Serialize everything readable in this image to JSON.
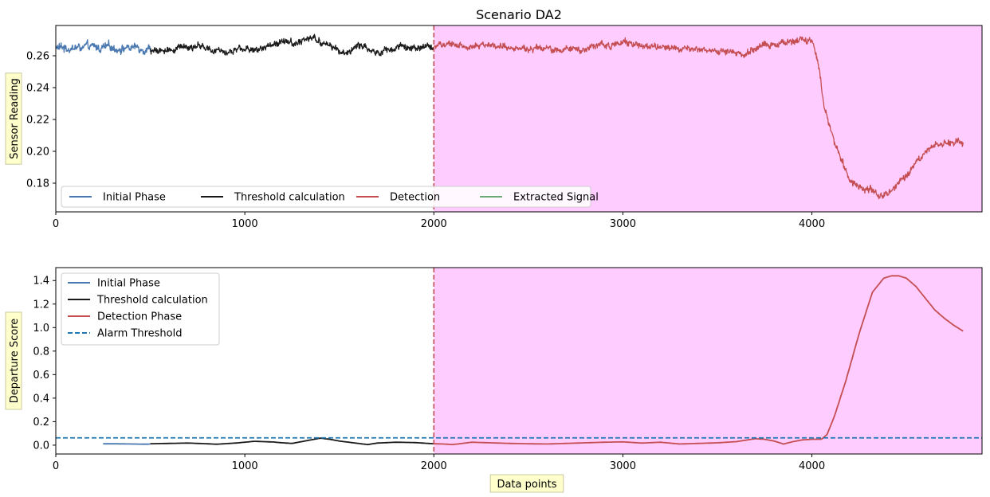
{
  "chart_data": [
    {
      "type": "line",
      "title": "Scenario DA2",
      "xlabel": "",
      "ylabel": "Sensor Reading",
      "xlim": [
        0,
        4900
      ],
      "ylim": [
        0.162,
        0.279
      ],
      "xticks": [
        0,
        1000,
        2000,
        3000,
        4000
      ],
      "yticks": [
        0.18,
        0.2,
        0.22,
        0.24,
        0.26
      ],
      "detection_start": 2000,
      "shaded_region": {
        "from": 2000,
        "to": 4900,
        "color": "#ffccff"
      },
      "legend_position": "lower-left",
      "legend_columns": 4,
      "series": [
        {
          "name": "Initial Phase",
          "color": "#4a78b0",
          "x": [
            0,
            500
          ],
          "y": [
            0.265,
            0.265
          ],
          "noise": 0.0025
        },
        {
          "name": "Threshold calculation",
          "color": "#1a1a1a",
          "x": [
            500,
            560,
            640,
            760,
            820,
            900,
            1000,
            1100,
            1200,
            1280,
            1350,
            1450,
            1520,
            1600,
            1700,
            1800,
            1900,
            2000
          ],
          "y": [
            0.263,
            0.262,
            0.265,
            0.267,
            0.263,
            0.263,
            0.264,
            0.265,
            0.27,
            0.268,
            0.271,
            0.266,
            0.262,
            0.266,
            0.263,
            0.264,
            0.265,
            0.265
          ],
          "noise": 0.002
        },
        {
          "name": "Detection",
          "color": "#c44e52",
          "x": [
            2000,
            2100,
            2200,
            2300,
            2400,
            2500,
            2600,
            2700,
            2800,
            2900,
            3000,
            3100,
            3200,
            3300,
            3400,
            3500,
            3600,
            3650,
            3700,
            3800,
            3900,
            3950,
            4000,
            4030,
            4060,
            4100,
            4150,
            4200,
            4300,
            4400,
            4500,
            4600,
            4700,
            4750,
            4800
          ],
          "y": [
            0.266,
            0.267,
            0.266,
            0.267,
            0.265,
            0.265,
            0.264,
            0.263,
            0.265,
            0.267,
            0.268,
            0.267,
            0.265,
            0.264,
            0.264,
            0.263,
            0.262,
            0.26,
            0.265,
            0.267,
            0.268,
            0.27,
            0.268,
            0.258,
            0.232,
            0.212,
            0.195,
            0.183,
            0.175,
            0.172,
            0.185,
            0.2,
            0.206,
            0.204,
            0.205
          ],
          "noise": 0.002
        },
        {
          "name": "Extracted Signal",
          "color": "#6aaa74",
          "x": [],
          "y": []
        }
      ]
    },
    {
      "type": "line",
      "title": "",
      "xlabel": "Data points",
      "ylabel": "Departure Score",
      "xlim": [
        0,
        4900
      ],
      "ylim": [
        -0.075,
        1.51
      ],
      "xticks": [
        0,
        1000,
        2000,
        3000,
        4000
      ],
      "yticks": [
        0.0,
        0.2,
        0.4,
        0.6,
        0.8,
        1.0,
        1.2,
        1.4
      ],
      "detection_start": 2000,
      "shaded_region": {
        "from": 2000,
        "to": 4900,
        "color": "#ffccff"
      },
      "legend_position": "upper-left",
      "legend_columns": 1,
      "alarm_threshold": 0.062,
      "series": [
        {
          "name": "Initial Phase",
          "color": "#4a78b0",
          "x": [
            250,
            300,
            400,
            480,
            500
          ],
          "y": [
            0.012,
            0.012,
            0.01,
            0.008,
            0.01
          ]
        },
        {
          "name": "Threshold calculation",
          "color": "#1a1a1a",
          "x": [
            500,
            600,
            700,
            800,
            850,
            950,
            1000,
            1050,
            1100,
            1150,
            1200,
            1250,
            1300,
            1350,
            1400,
            1450,
            1500,
            1550,
            1600,
            1650,
            1700,
            1800,
            1900,
            2000
          ],
          "y": [
            0.012,
            0.015,
            0.018,
            0.012,
            0.008,
            0.018,
            0.025,
            0.033,
            0.03,
            0.027,
            0.02,
            0.015,
            0.03,
            0.045,
            0.06,
            0.05,
            0.035,
            0.025,
            0.015,
            0.005,
            0.018,
            0.025,
            0.022,
            0.012
          ]
        },
        {
          "name": "Detection Phase",
          "color": "#c44e52",
          "x": [
            2000,
            2050,
            2100,
            2150,
            2200,
            2300,
            2400,
            2500,
            2600,
            2700,
            2800,
            2900,
            3000,
            3100,
            3200,
            3300,
            3400,
            3500,
            3600,
            3700,
            3750,
            3800,
            3850,
            3900,
            3950,
            4000,
            4050,
            4080,
            4120,
            4180,
            4250,
            4320,
            4380,
            4420,
            4460,
            4500,
            4550,
            4600,
            4650,
            4700,
            4750,
            4800
          ],
          "y": [
            0.012,
            0.01,
            0.005,
            0.015,
            0.025,
            0.02,
            0.015,
            0.012,
            0.01,
            0.015,
            0.02,
            0.025,
            0.028,
            0.018,
            0.025,
            0.01,
            0.015,
            0.02,
            0.03,
            0.055,
            0.05,
            0.035,
            0.01,
            0.03,
            0.045,
            0.05,
            0.05,
            0.09,
            0.25,
            0.55,
            0.95,
            1.3,
            1.42,
            1.44,
            1.44,
            1.42,
            1.35,
            1.25,
            1.15,
            1.08,
            1.02,
            0.97
          ]
        },
        {
          "name": "Alarm Threshold",
          "color": "#1f77b4",
          "dashed": true,
          "x": [
            0,
            4900
          ],
          "y": [
            0.062,
            0.062
          ]
        }
      ]
    }
  ],
  "axis_label_box_color": "#ffffcc"
}
